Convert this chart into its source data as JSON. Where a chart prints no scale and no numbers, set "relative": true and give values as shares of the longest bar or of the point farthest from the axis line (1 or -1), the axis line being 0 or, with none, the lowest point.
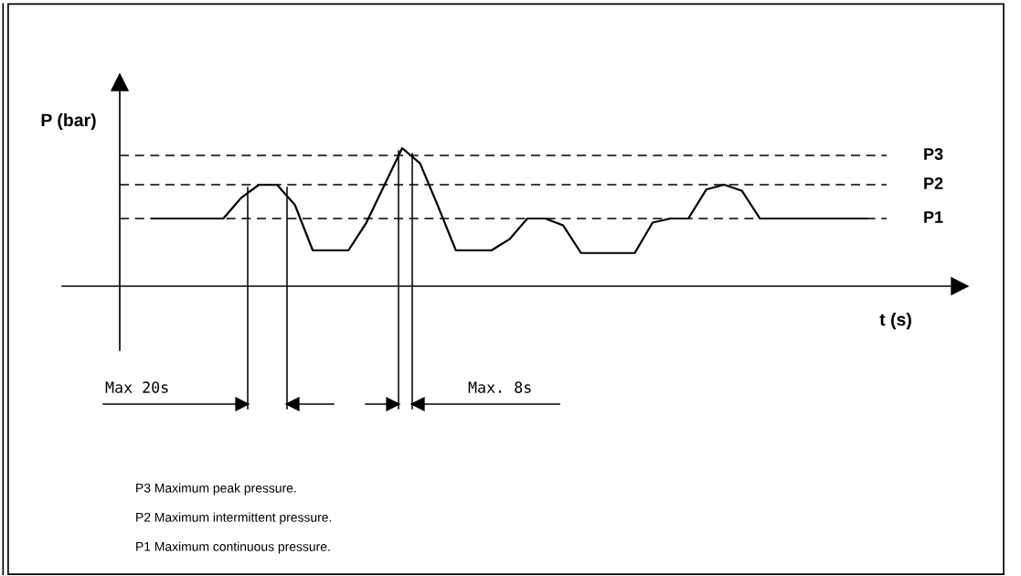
{
  "chart_data": {
    "type": "line",
    "relative": true,
    "xlabel": "t (s)",
    "ylabel": "P (bar)",
    "line_style": "solid",
    "marker": "none",
    "categories": [
      null,
      null,
      null,
      null,
      null,
      null,
      null,
      null,
      null,
      null,
      null,
      null,
      null,
      null,
      null,
      null,
      null,
      null,
      null,
      null,
      null,
      null,
      null,
      null,
      null,
      null,
      null,
      null,
      null,
      null,
      null,
      null,
      null,
      null,
      null,
      null,
      null,
      null,
      null,
      null,
      null
    ],
    "series": [
      {
        "color": "#000000",
        "values": [
          0.49,
          0.49,
          0.49,
          0.49,
          0.49,
          0.64,
          0.735,
          0.735,
          0.59,
          0.26,
          0.26,
          0.26,
          0.46,
          0.73,
          1.0,
          0.89,
          0.58,
          0.26,
          0.26,
          0.26,
          0.34,
          0.49,
          0.49,
          0.44,
          0.24,
          0.24,
          0.24,
          0.24,
          0.46,
          0.49,
          0.49,
          0.7,
          0.735,
          0.69,
          0.49,
          0.49,
          0.49,
          0.49,
          0.49,
          0.49,
          0.49
        ]
      }
    ],
    "ref_lines": [
      {
        "axis": "y",
        "value": 0.947,
        "label": "P3",
        "color": "#000000",
        "line_style": "dashed"
      },
      {
        "axis": "y",
        "value": 0.735,
        "label": "P2",
        "color": "#000000",
        "line_style": "dashed"
      },
      {
        "axis": "y",
        "value": 0.49,
        "label": "P1",
        "color": "#000000",
        "line_style": "dashed"
      }
    ],
    "annotations": [
      "Max 20s",
      "Max. 8s",
      "P3 Maximum peak pressure.",
      "P2 Maximum intermittent pressure.",
      "P1 Maximum continuous pressure."
    ]
  }
}
